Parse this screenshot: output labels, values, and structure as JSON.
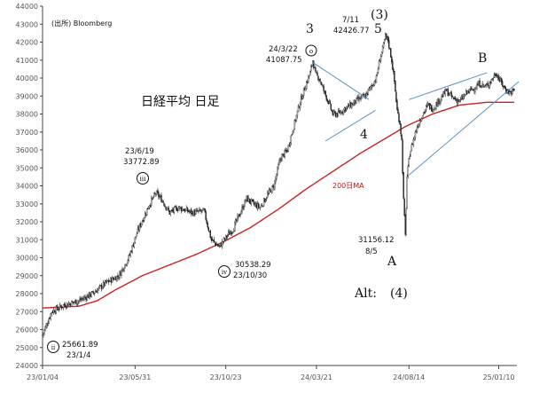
{
  "chart_data": {
    "type": "candlestick",
    "title": "日経平均 日足",
    "source": "(出所) Bloomberg",
    "ylim": [
      24000,
      44000
    ],
    "yticks": [
      24000,
      25000,
      26000,
      27000,
      28000,
      29000,
      30000,
      31000,
      32000,
      33000,
      34000,
      35000,
      36000,
      37000,
      38000,
      39000,
      40000,
      41000,
      42000,
      43000,
      44000
    ],
    "xticks": [
      "23/01/04",
      "23/05/31",
      "23/10/23",
      "24/03/21",
      "24/08/14",
      "25/01/10"
    ],
    "ma_label": "200日MA",
    "colors": {
      "candles": "#222222",
      "ma": "#cc2222",
      "trendlines": "#5b8fc7"
    },
    "price_path": [
      [
        0,
        25700
      ],
      [
        10,
        27000
      ],
      [
        25,
        27400
      ],
      [
        40,
        27600
      ],
      [
        55,
        28000
      ],
      [
        70,
        28600
      ],
      [
        84,
        29000
      ],
      [
        95,
        30000
      ],
      [
        105,
        31500
      ],
      [
        118,
        33000
      ],
      [
        125,
        33600
      ],
      [
        132,
        33200
      ],
      [
        140,
        32500
      ],
      [
        150,
        32800
      ],
      [
        165,
        32500
      ],
      [
        178,
        32600
      ],
      [
        186,
        31000
      ],
      [
        195,
        30600
      ],
      [
        203,
        31200
      ],
      [
        210,
        31600
      ],
      [
        218,
        32500
      ],
      [
        225,
        33300
      ],
      [
        232,
        33000
      ],
      [
        240,
        32800
      ],
      [
        248,
        33500
      ],
      [
        255,
        34000
      ],
      [
        262,
        35500
      ],
      [
        270,
        36000
      ],
      [
        278,
        37500
      ],
      [
        283,
        38500
      ],
      [
        290,
        39600
      ],
      [
        295,
        40300
      ],
      [
        298,
        41000
      ],
      [
        301,
        40200
      ],
      [
        305,
        40000
      ],
      [
        310,
        39300
      ],
      [
        315,
        38700
      ],
      [
        320,
        38000
      ],
      [
        326,
        38000
      ],
      [
        333,
        38300
      ],
      [
        340,
        38500
      ],
      [
        348,
        38800
      ],
      [
        356,
        39000
      ],
      [
        362,
        39500
      ],
      [
        368,
        40000
      ],
      [
        372,
        41100
      ],
      [
        375,
        41600
      ],
      [
        378,
        42300
      ],
      [
        381,
        42100
      ],
      [
        385,
        41000
      ],
      [
        388,
        39800
      ],
      [
        391,
        38200
      ],
      [
        394,
        37500
      ],
      [
        396,
        36500
      ],
      [
        398,
        33200
      ],
      [
        400,
        31200
      ],
      [
        402,
        34500
      ],
      [
        405,
        35800
      ],
      [
        408,
        36400
      ],
      [
        413,
        37300
      ],
      [
        418,
        37900
      ],
      [
        425,
        38500
      ],
      [
        430,
        38300
      ],
      [
        438,
        38800
      ],
      [
        445,
        39300
      ],
      [
        452,
        38900
      ],
      [
        460,
        38700
      ],
      [
        468,
        39200
      ],
      [
        475,
        39400
      ],
      [
        482,
        39700
      ],
      [
        488,
        39500
      ],
      [
        494,
        39800
      ],
      [
        500,
        40300
      ],
      [
        505,
        39800
      ],
      [
        510,
        39400
      ],
      [
        515,
        39200
      ],
      [
        520,
        39300
      ]
    ],
    "ma200_path": [
      [
        0,
        27200
      ],
      [
        40,
        27300
      ],
      [
        60,
        27600
      ],
      [
        80,
        28200
      ],
      [
        110,
        29000
      ],
      [
        140,
        29600
      ],
      [
        170,
        30200
      ],
      [
        200,
        30900
      ],
      [
        230,
        31700
      ],
      [
        260,
        32700
      ],
      [
        290,
        33800
      ],
      [
        320,
        34800
      ],
      [
        350,
        35800
      ],
      [
        380,
        36700
      ],
      [
        400,
        37300
      ],
      [
        430,
        38000
      ],
      [
        460,
        38500
      ],
      [
        490,
        38650
      ],
      [
        520,
        38650
      ]
    ],
    "trendlines": [
      [
        [
          297,
          40900
        ],
        [
          360,
          38800
        ]
      ],
      [
        [
          312,
          36500
        ],
        [
          367,
          38200
        ]
      ],
      [
        [
          404,
          38800
        ],
        [
          490,
          40300
        ]
      ],
      [
        [
          404,
          34600
        ],
        [
          525,
          39800
        ]
      ]
    ],
    "annotations": [
      {
        "date": "23/1/4",
        "value": "25661.89",
        "label": "ii"
      },
      {
        "date": "23/6/19",
        "value": "33772.89",
        "label": "iii"
      },
      {
        "date": "23/10/30",
        "value": "30538.29",
        "label": "iv"
      },
      {
        "date": "24/3/22",
        "value": "41087.75",
        "label": "o"
      },
      {
        "date": "7/11",
        "value": "42426.77",
        "label": ""
      },
      {
        "date": "8/5",
        "value": "31156.12",
        "label": ""
      }
    ],
    "wave_labels": [
      "3",
      "4",
      "(3)",
      "5",
      "A",
      "B",
      "Alt:",
      "(4)"
    ]
  }
}
